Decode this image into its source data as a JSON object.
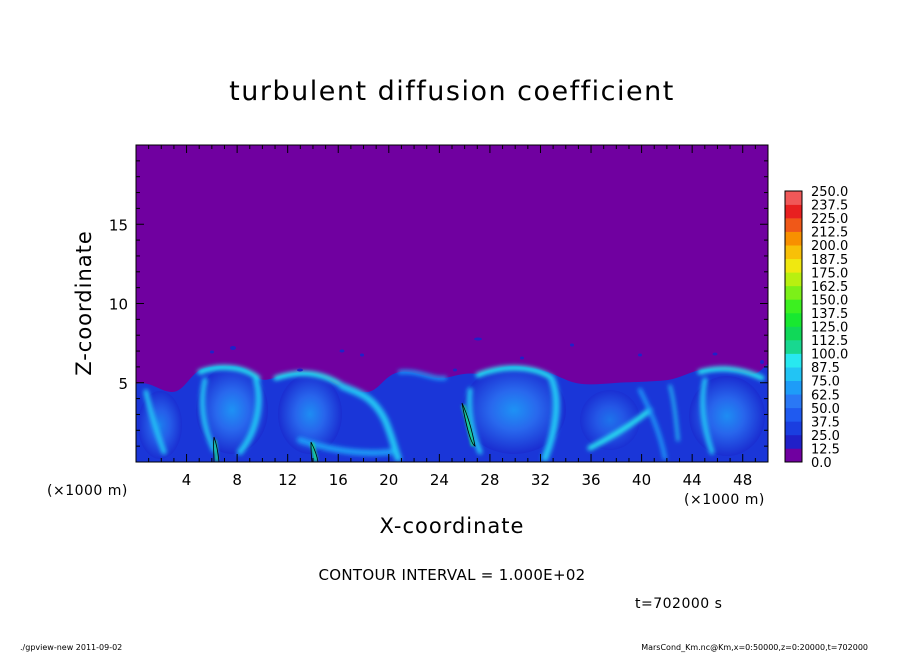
{
  "chart_data": {
    "type": "heatmap",
    "title": "turbulent diffusion coefficient",
    "xlabel": "X-coordinate",
    "ylabel": "Z-coordinate",
    "x_unit_label": "(×1000 m)",
    "x_unit_label_right": "(×1000 m)",
    "xlim": [
      0,
      50
    ],
    "ylim": [
      0,
      20
    ],
    "x_ticks": [
      4,
      8,
      12,
      16,
      20,
      24,
      28,
      32,
      36,
      40,
      44,
      48
    ],
    "y_ticks": [
      5,
      10,
      15
    ],
    "colorbar": {
      "levels": [
        "0.0",
        "12.5",
        "25.0",
        "37.5",
        "50.0",
        "62.5",
        "75.0",
        "87.5",
        "100.0",
        "112.5",
        "125.0",
        "137.5",
        "150.0",
        "162.5",
        "175.0",
        "187.5",
        "200.0",
        "212.5",
        "225.0",
        "237.5",
        "250.0"
      ],
      "colors": [
        "#7000a0",
        "#2020c8",
        "#1a3ee0",
        "#1f5af0",
        "#2a78f5",
        "#1e9cf8",
        "#22c4f4",
        "#28e8f0",
        "#18d890",
        "#10d858",
        "#18e830",
        "#3cf020",
        "#7cf018",
        "#b8f010",
        "#f0e810",
        "#f8c008",
        "#f89000",
        "#f05818",
        "#e82020",
        "#f05858"
      ]
    },
    "domain_value": 0.0,
    "boundary_layer_top_z": 5.5,
    "annotation_contour_interval": "CONTOUR INTERVAL = 1.000E+02",
    "annotation_time": "t=702000 s"
  },
  "footer": {
    "left": "./gpview-new  2011-09-02",
    "right": "MarsCond_Km.nc@Km,x=0:50000,z=0:20000,t=702000"
  }
}
